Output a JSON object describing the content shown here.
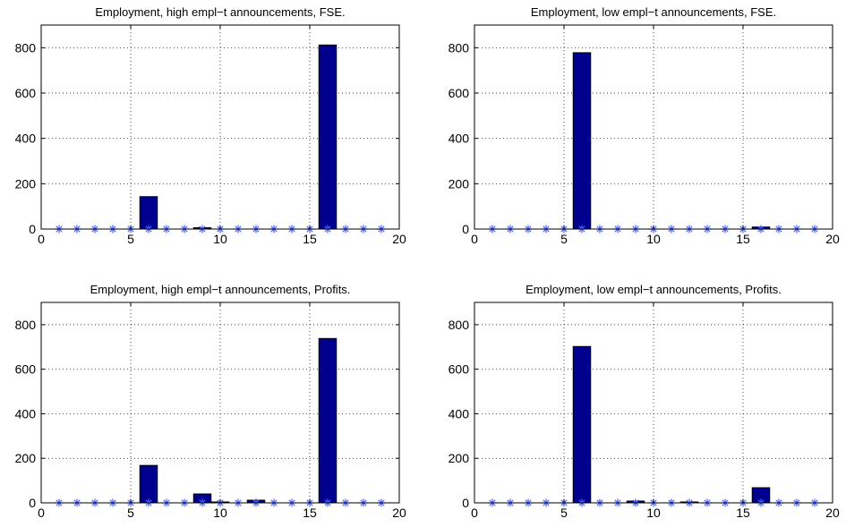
{
  "chart_data": [
    {
      "type": "bar",
      "title": "Employment, high empl−t announcements, FSE.",
      "x": [
        1,
        2,
        3,
        4,
        5,
        6,
        7,
        8,
        9,
        10,
        11,
        12,
        13,
        14,
        15,
        16,
        17,
        18,
        19
      ],
      "values": [
        0,
        0,
        0,
        0,
        0,
        143,
        0,
        0,
        6,
        0,
        0,
        0,
        0,
        0,
        0,
        812,
        0,
        0,
        0
      ],
      "xlim": [
        0,
        20
      ],
      "ylim": [
        0,
        900
      ],
      "xticks": [
        0,
        5,
        10,
        15,
        20
      ],
      "yticks": [
        0,
        200,
        400,
        600,
        800
      ],
      "markers_at_zero": true,
      "grid": true,
      "bar_color": "#00008f",
      "marker_color": "#4a64ff"
    },
    {
      "type": "bar",
      "title": "Employment, low empl−t announcements, FSE.",
      "x": [
        1,
        2,
        3,
        4,
        5,
        6,
        7,
        8,
        9,
        10,
        11,
        12,
        13,
        14,
        15,
        16,
        17,
        18,
        19
      ],
      "values": [
        0,
        0,
        0,
        0,
        0,
        778,
        0,
        0,
        0,
        0,
        0,
        0,
        0,
        0,
        0,
        9,
        0,
        0,
        0
      ],
      "xlim": [
        0,
        20
      ],
      "ylim": [
        0,
        900
      ],
      "xticks": [
        0,
        5,
        10,
        15,
        20
      ],
      "yticks": [
        0,
        200,
        400,
        600,
        800
      ],
      "markers_at_zero": true,
      "grid": true,
      "bar_color": "#00008f",
      "marker_color": "#4a64ff"
    },
    {
      "type": "bar",
      "title": "Employment, high empl−t announcements, Profits.",
      "x": [
        1,
        2,
        3,
        4,
        5,
        6,
        7,
        8,
        9,
        10,
        11,
        12,
        13,
        14,
        15,
        16,
        17,
        18,
        19
      ],
      "values": [
        0,
        0,
        0,
        0,
        0,
        168,
        0,
        0,
        40,
        4,
        0,
        12,
        0,
        0,
        0,
        738,
        0,
        0,
        0
      ],
      "xlim": [
        0,
        20
      ],
      "ylim": [
        0,
        900
      ],
      "xticks": [
        0,
        5,
        10,
        15,
        20
      ],
      "yticks": [
        0,
        200,
        400,
        600,
        800
      ],
      "markers_at_zero": true,
      "grid": true,
      "bar_color": "#00008f",
      "marker_color": "#4a64ff"
    },
    {
      "type": "bar",
      "title": "Employment, low empl−t announcements, Profits.",
      "x": [
        1,
        2,
        3,
        4,
        5,
        6,
        7,
        8,
        9,
        10,
        11,
        12,
        13,
        14,
        15,
        16,
        17,
        18,
        19
      ],
      "values": [
        0,
        0,
        0,
        0,
        0,
        702,
        0,
        0,
        8,
        0,
        0,
        4,
        0,
        0,
        0,
        68,
        0,
        0,
        0
      ],
      "xlim": [
        0,
        20
      ],
      "ylim": [
        0,
        900
      ],
      "xticks": [
        0,
        5,
        10,
        15,
        20
      ],
      "yticks": [
        0,
        200,
        400,
        600,
        800
      ],
      "markers_at_zero": true,
      "grid": true,
      "bar_color": "#00008f",
      "marker_color": "#4a64ff"
    }
  ]
}
